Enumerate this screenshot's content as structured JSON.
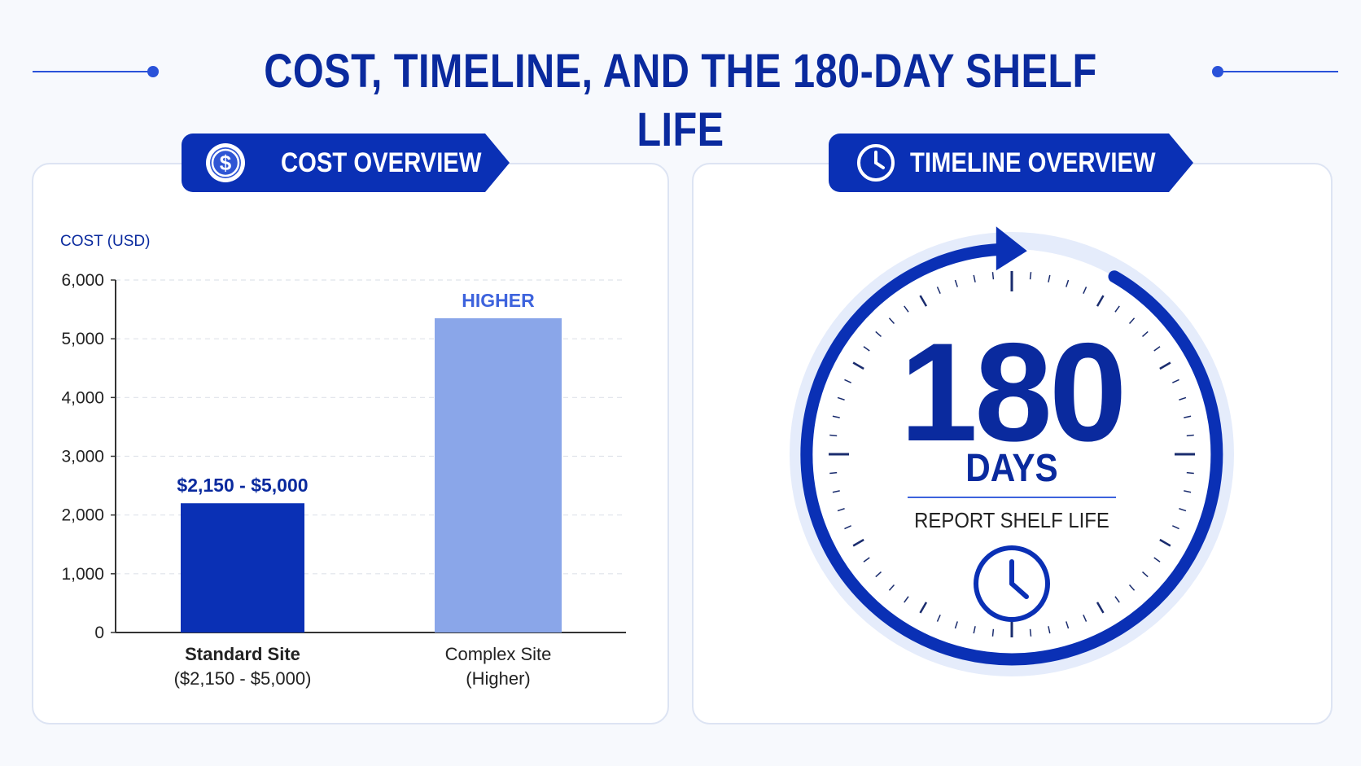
{
  "page": {
    "title": "COST, TIMELINE, AND THE 180-DAY SHELF LIFE"
  },
  "colors": {
    "accent": "#0a30b5",
    "title": "#0a2a9e",
    "bar_standard": "#0a30b5",
    "bar_complex": "#8aa6e9",
    "higher_label": "#3d63dd"
  },
  "cost_panel": {
    "label": "COST OVERVIEW",
    "icon": "dollar-icon"
  },
  "timeline_panel": {
    "label": "TIMELINE OVERVIEW",
    "icon": "clock-icon",
    "number": "180",
    "unit": "DAYS",
    "caption": "REPORT SHELF LIFE",
    "inner_icon": "clock-icon"
  },
  "chart_data": {
    "type": "bar",
    "title": "",
    "ylabel": "COST (USD)",
    "xlabel": "",
    "ylim": [
      0,
      6000
    ],
    "yticks": [
      0,
      1000,
      2000,
      3000,
      4000,
      5000,
      6000
    ],
    "ytick_labels": [
      "0",
      "1,000",
      "2,000",
      "3,000",
      "4,000",
      "5,000",
      "6,000"
    ],
    "grid": true,
    "categories": [
      {
        "name": "Standard Site",
        "sub": "($2,150 - $5,000)",
        "bold": true
      },
      {
        "name": "Complex Site",
        "sub": "(Higher)",
        "bold": false
      }
    ],
    "values": [
      2200,
      5350
    ],
    "data_labels": [
      "$2,150 - $5,000",
      "HIGHER"
    ]
  }
}
